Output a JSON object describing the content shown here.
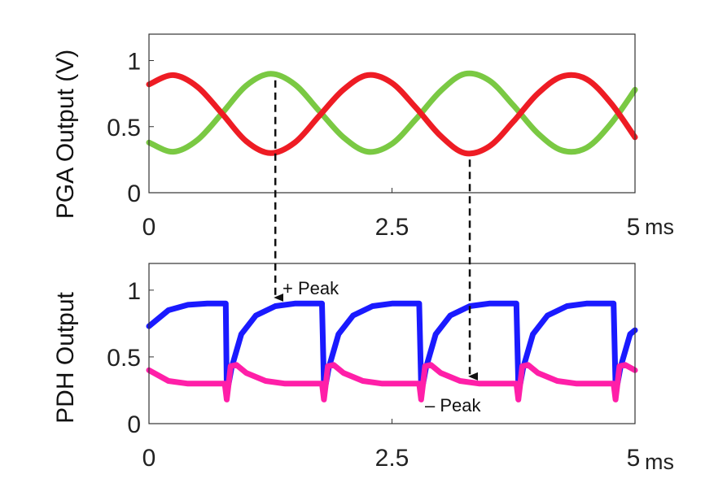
{
  "chart_data": [
    {
      "type": "line",
      "title": "",
      "xlabel": "",
      "ylabel": "PGA Output (V)",
      "x_unit": "ms",
      "xlim": [
        0,
        5
      ],
      "ylim": [
        0,
        1.2
      ],
      "xticks": [
        "0",
        "2.5",
        "5"
      ],
      "yticks": [
        "0",
        "0.5",
        "1"
      ],
      "grid": false,
      "legend": "none",
      "series": [
        {
          "color": "#7ac943",
          "x": [
            0,
            0.25,
            0.5,
            0.75,
            1.0,
            1.25,
            1.5,
            1.75,
            2.0,
            2.25,
            2.5,
            2.75,
            3.0,
            3.25,
            3.5,
            3.75,
            4.0,
            4.25,
            4.5,
            4.75,
            5.0
          ],
          "y": [
            0.38,
            0.31,
            0.4,
            0.6,
            0.81,
            0.9,
            0.82,
            0.62,
            0.42,
            0.31,
            0.37,
            0.56,
            0.77,
            0.9,
            0.85,
            0.66,
            0.45,
            0.32,
            0.34,
            0.52,
            0.78
          ]
        },
        {
          "color": "#ee1c24",
          "x": [
            0,
            0.25,
            0.5,
            0.75,
            1.0,
            1.25,
            1.5,
            1.75,
            2.0,
            2.25,
            2.5,
            2.75,
            3.0,
            3.25,
            3.5,
            3.75,
            4.0,
            4.25,
            4.5,
            4.75,
            5.0
          ],
          "y": [
            0.82,
            0.89,
            0.8,
            0.6,
            0.39,
            0.3,
            0.38,
            0.58,
            0.78,
            0.89,
            0.83,
            0.64,
            0.43,
            0.3,
            0.35,
            0.54,
            0.75,
            0.88,
            0.86,
            0.68,
            0.42
          ]
        }
      ]
    },
    {
      "type": "line",
      "title": "",
      "xlabel": "",
      "ylabel": "PDH Output",
      "x_unit": "ms",
      "xlim": [
        0,
        5
      ],
      "ylim": [
        0,
        1.2
      ],
      "xticks": [
        "0",
        "2.5",
        "5"
      ],
      "yticks": [
        "0",
        "0.5",
        "1"
      ],
      "grid": false,
      "legend": "none",
      "annotations": [
        "+ Peak",
        "– Peak"
      ],
      "series": [
        {
          "color": "#1a1aff",
          "x": [
            0,
            0.2,
            0.4,
            0.6,
            0.79,
            0.8,
            0.82,
            0.85,
            0.95,
            1.1,
            1.3,
            1.5,
            1.65,
            1.78,
            1.8,
            1.82,
            1.85,
            1.95,
            2.1,
            2.3,
            2.5,
            2.65,
            2.78,
            2.8,
            2.82,
            2.85,
            2.95,
            3.1,
            3.3,
            3.5,
            3.65,
            3.78,
            3.8,
            3.82,
            3.85,
            3.95,
            4.1,
            4.3,
            4.5,
            4.65,
            4.78,
            4.8,
            4.82,
            4.85,
            4.95,
            5.0
          ],
          "y": [
            0.73,
            0.85,
            0.89,
            0.9,
            0.9,
            0.29,
            0.3,
            0.42,
            0.67,
            0.81,
            0.88,
            0.9,
            0.9,
            0.9,
            0.29,
            0.3,
            0.42,
            0.67,
            0.81,
            0.88,
            0.9,
            0.9,
            0.9,
            0.29,
            0.3,
            0.42,
            0.67,
            0.81,
            0.88,
            0.9,
            0.9,
            0.9,
            0.29,
            0.3,
            0.42,
            0.67,
            0.81,
            0.88,
            0.9,
            0.9,
            0.9,
            0.29,
            0.3,
            0.42,
            0.67,
            0.7
          ]
        },
        {
          "color": "#ff1fa8",
          "x": [
            0,
            0.2,
            0.4,
            0.6,
            0.78,
            0.8,
            0.82,
            0.84,
            0.9,
            1.0,
            1.2,
            1.4,
            1.6,
            1.78,
            1.8,
            1.82,
            1.84,
            1.9,
            2.0,
            2.2,
            2.4,
            2.6,
            2.78,
            2.8,
            2.82,
            2.84,
            2.9,
            3.0,
            3.2,
            3.4,
            3.6,
            3.78,
            3.8,
            3.82,
            3.84,
            3.9,
            4.0,
            4.2,
            4.4,
            4.6,
            4.78,
            4.8,
            4.82,
            4.84,
            4.9,
            5.0
          ],
          "y": [
            0.4,
            0.32,
            0.3,
            0.3,
            0.3,
            0.18,
            0.3,
            0.43,
            0.44,
            0.38,
            0.32,
            0.3,
            0.3,
            0.3,
            0.18,
            0.3,
            0.43,
            0.44,
            0.38,
            0.32,
            0.3,
            0.3,
            0.3,
            0.18,
            0.3,
            0.43,
            0.44,
            0.38,
            0.32,
            0.3,
            0.3,
            0.3,
            0.18,
            0.3,
            0.43,
            0.44,
            0.38,
            0.32,
            0.3,
            0.3,
            0.3,
            0.18,
            0.3,
            0.43,
            0.44,
            0.4
          ]
        }
      ]
    }
  ],
  "arrows": [
    {
      "x": 1.3,
      "from_chart": 0,
      "from_y": 0.9,
      "to_chart": 1,
      "to_y": 0.92
    },
    {
      "x": 3.3,
      "from_chart": 0,
      "from_y": 0.3,
      "to_chart": 1,
      "to_y": 0.33
    }
  ]
}
